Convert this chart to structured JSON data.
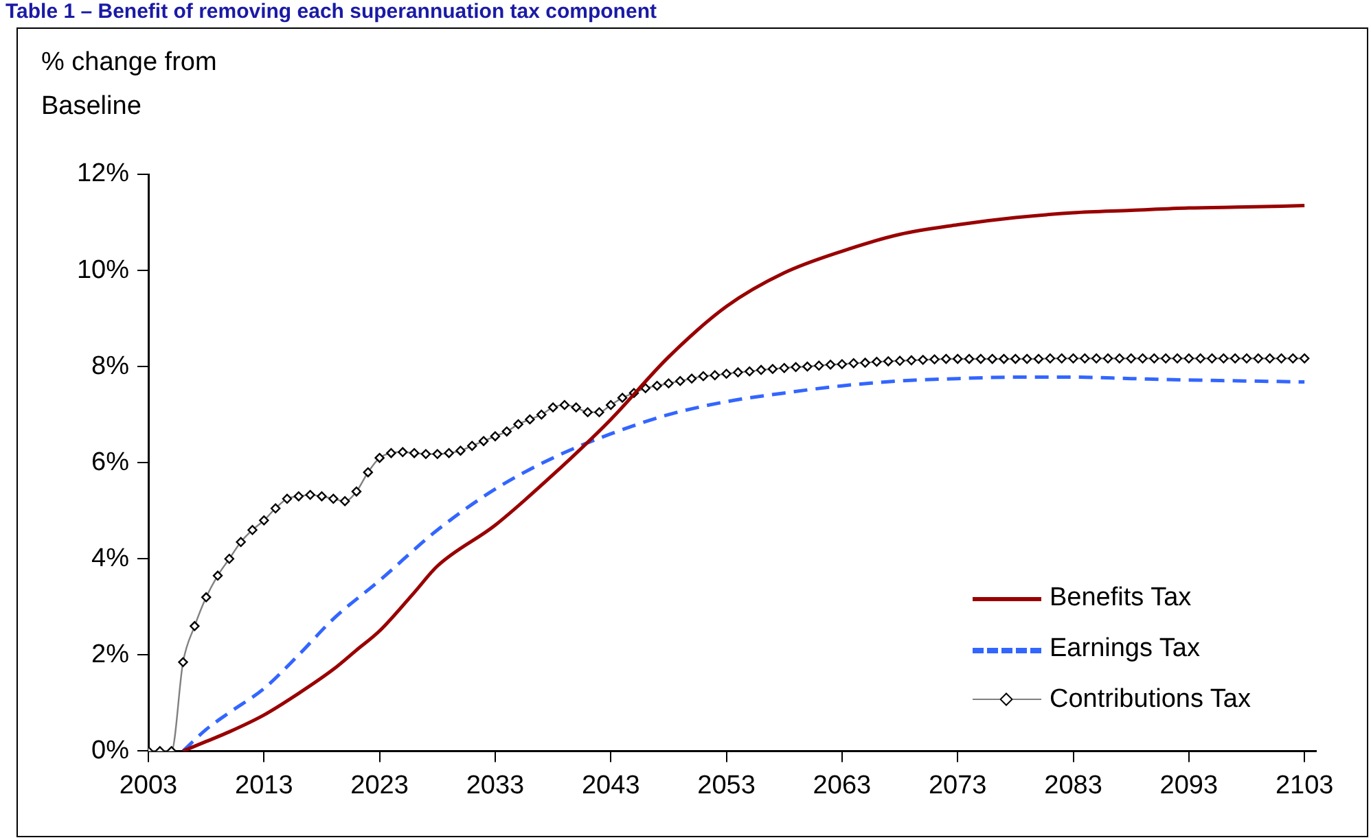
{
  "chart_data": {
    "type": "line",
    "title": "Table 1 – Benefit of removing each superannuation tax component",
    "ylabel": "% change from Baseline",
    "xlim": [
      2003,
      2104
    ],
    "xticks": [
      2003,
      2013,
      2023,
      2033,
      2043,
      2053,
      2063,
      2073,
      2083,
      2093,
      2103
    ],
    "ylim": [
      0,
      12
    ],
    "yticks": [
      {
        "value": 0,
        "label": "0%"
      },
      {
        "value": 2,
        "label": "2%"
      },
      {
        "value": 4,
        "label": "4%"
      },
      {
        "value": 6,
        "label": "6%"
      },
      {
        "value": 8,
        "label": "8%"
      },
      {
        "value": 10,
        "label": "10%"
      },
      {
        "value": 12,
        "label": "12%"
      }
    ],
    "grid": false,
    "legend": "bottom right",
    "series": [
      {
        "name": "Benefits Tax",
        "color": "#990000",
        "line_style": "solid",
        "marker": "none",
        "x": [
          2006,
          2008,
          2010,
          2013,
          2016,
          2019,
          2021,
          2023,
          2026,
          2028,
          2033,
          2038,
          2043,
          2048,
          2053,
          2058,
          2063,
          2068,
          2073,
          2078,
          2083,
          2088,
          2093,
          2098,
          2103
        ],
        "values": [
          0,
          0.2,
          0.4,
          0.75,
          1.2,
          1.7,
          2.1,
          2.5,
          3.3,
          3.85,
          4.7,
          5.75,
          6.9,
          8.2,
          9.25,
          9.95,
          10.4,
          10.75,
          10.95,
          11.1,
          11.2,
          11.25,
          11.3,
          11.32,
          11.35
        ]
      },
      {
        "name": "Earnings Tax",
        "color": "#3366ff",
        "line_style": "dashed",
        "marker": "none",
        "x": [
          2006,
          2008,
          2010,
          2013,
          2016,
          2019,
          2023,
          2028,
          2033,
          2038,
          2043,
          2048,
          2053,
          2058,
          2063,
          2068,
          2073,
          2078,
          2083,
          2088,
          2093,
          2098,
          2103
        ],
        "values": [
          0,
          0.45,
          0.8,
          1.3,
          2.0,
          2.75,
          3.55,
          4.6,
          5.45,
          6.1,
          6.6,
          7.0,
          7.27,
          7.45,
          7.6,
          7.7,
          7.75,
          7.78,
          7.78,
          7.75,
          7.72,
          7.7,
          7.68
        ]
      },
      {
        "name": "Contributions Tax",
        "color": "#000000",
        "line_style": "solid",
        "marker": "diamond",
        "x": [
          2003,
          2004,
          2005,
          2006,
          2007,
          2008,
          2009,
          2010,
          2011,
          2012,
          2013,
          2014,
          2015,
          2016,
          2017,
          2018,
          2019,
          2020,
          2021,
          2022,
          2023,
          2024,
          2025,
          2026,
          2027,
          2028,
          2029,
          2030,
          2031,
          2032,
          2033,
          2034,
          2035,
          2036,
          2037,
          2038,
          2039,
          2040,
          2041,
          2042,
          2043,
          2044,
          2045,
          2046,
          2047,
          2048,
          2049,
          2050,
          2051,
          2052,
          2053,
          2054,
          2055,
          2056,
          2057,
          2058,
          2059,
          2060,
          2061,
          2062,
          2063,
          2064,
          2065,
          2066,
          2067,
          2068,
          2069,
          2070,
          2071,
          2072,
          2073,
          2074,
          2075,
          2076,
          2077,
          2078,
          2079,
          2080,
          2081,
          2082,
          2083,
          2084,
          2085,
          2086,
          2087,
          2088,
          2089,
          2090,
          2091,
          2092,
          2093,
          2094,
          2095,
          2096,
          2097,
          2098,
          2099,
          2100,
          2101,
          2102,
          2103
        ],
        "values": [
          0,
          0,
          0,
          1.85,
          2.6,
          3.2,
          3.65,
          4.0,
          4.35,
          4.6,
          4.8,
          5.05,
          5.25,
          5.3,
          5.33,
          5.3,
          5.25,
          5.2,
          5.4,
          5.8,
          6.1,
          6.2,
          6.22,
          6.2,
          6.18,
          6.18,
          6.2,
          6.25,
          6.35,
          6.45,
          6.55,
          6.65,
          6.8,
          6.9,
          7.0,
          7.15,
          7.2,
          7.15,
          7.05,
          7.05,
          7.2,
          7.35,
          7.45,
          7.55,
          7.6,
          7.65,
          7.7,
          7.75,
          7.8,
          7.82,
          7.85,
          7.88,
          7.9,
          7.93,
          7.95,
          7.97,
          7.99,
          8.0,
          8.02,
          8.04,
          8.05,
          8.07,
          8.08,
          8.1,
          8.11,
          8.12,
          8.13,
          8.14,
          8.15,
          8.16,
          8.16,
          8.16,
          8.16,
          8.16,
          8.16,
          8.16,
          8.16,
          8.16,
          8.17,
          8.17,
          8.17,
          8.17,
          8.17,
          8.17,
          8.17,
          8.17,
          8.17,
          8.17,
          8.17,
          8.17,
          8.17,
          8.17,
          8.17,
          8.17,
          8.17,
          8.17,
          8.17,
          8.17,
          8.17,
          8.17,
          8.17
        ]
      }
    ]
  }
}
